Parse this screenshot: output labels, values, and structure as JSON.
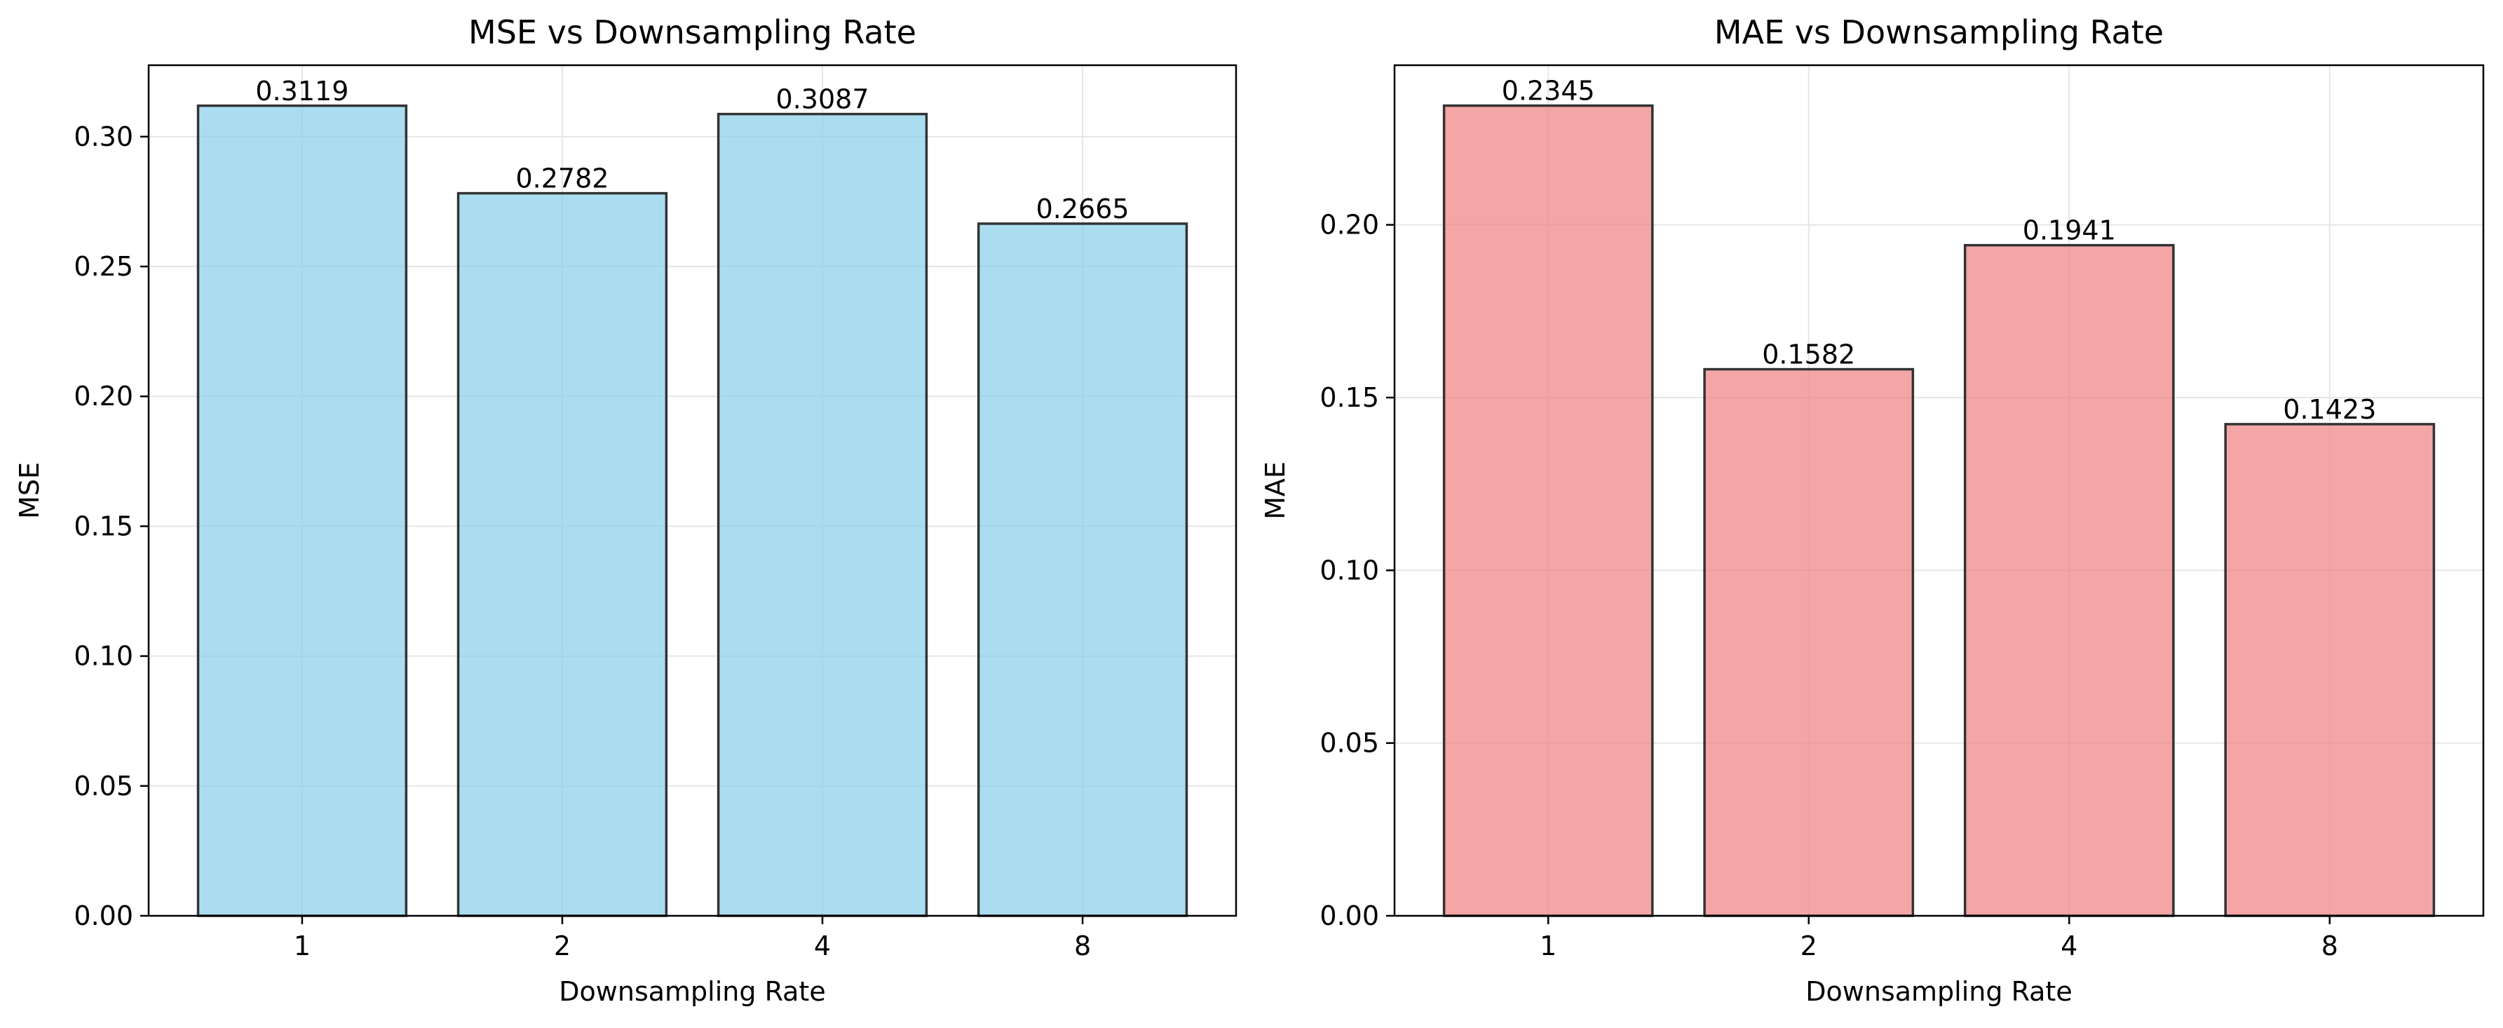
{
  "chart_data": [
    {
      "type": "bar",
      "title": "MSE vs Downsampling Rate",
      "xlabel": "Downsampling Rate",
      "ylabel": "MSE",
      "categories": [
        "1",
        "2",
        "4",
        "8"
      ],
      "values": [
        0.3119,
        0.2782,
        0.3087,
        0.2665
      ],
      "value_labels": [
        "0.3119",
        "0.2782",
        "0.3087",
        "0.2665"
      ],
      "ylim": [
        0,
        0.3275
      ],
      "yticks": [
        0,
        0.05,
        0.1,
        0.15,
        0.2,
        0.25,
        0.3
      ],
      "ytick_labels": [
        "0.00",
        "0.05",
        "0.10",
        "0.15",
        "0.20",
        "0.25",
        "0.30"
      ],
      "grid": true,
      "bar_color": "#87CEEB",
      "edge_color": "#333333"
    },
    {
      "type": "bar",
      "title": "MAE vs Downsampling Rate",
      "xlabel": "Downsampling Rate",
      "ylabel": "MAE",
      "categories": [
        "1",
        "2",
        "4",
        "8"
      ],
      "values": [
        0.2345,
        0.1582,
        0.1941,
        0.1423
      ],
      "value_labels": [
        "0.2345",
        "0.1582",
        "0.1941",
        "0.1423"
      ],
      "ylim": [
        0,
        0.2462
      ],
      "yticks": [
        0,
        0.05,
        0.1,
        0.15,
        0.2
      ],
      "ytick_labels": [
        "0.00",
        "0.05",
        "0.10",
        "0.15",
        "0.20"
      ],
      "grid": true,
      "bar_color": "#F08080",
      "edge_color": "#333333"
    }
  ]
}
